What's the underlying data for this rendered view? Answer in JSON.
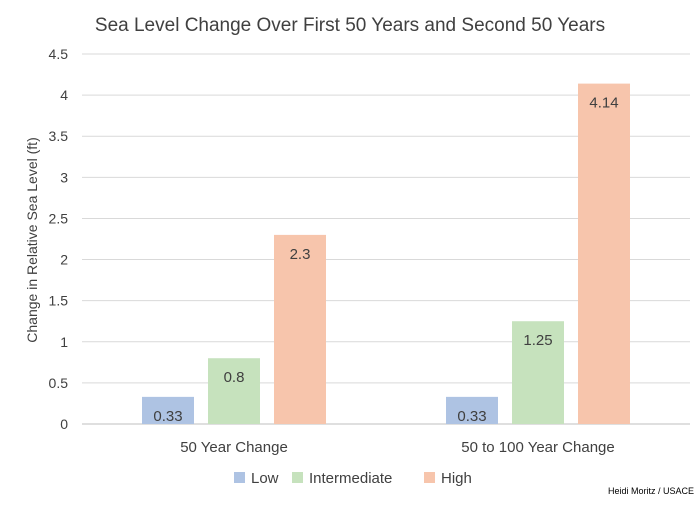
{
  "chart_data": {
    "type": "bar",
    "title": "Sea Level Change Over First 50 Years and Second 50 Years",
    "xlabel": "",
    "ylabel": "Change in Relative Sea Level (ft)",
    "categories": [
      "50 Year Change",
      "50 to 100 Year Change"
    ],
    "series": [
      {
        "name": "Low",
        "values": [
          0.33,
          0.33
        ],
        "labels": [
          "0.33",
          "0.33"
        ],
        "color": "#aec3e3"
      },
      {
        "name": "Intermediate",
        "values": [
          0.8,
          1.25
        ],
        "labels": [
          "0.8",
          "1.25"
        ],
        "color": "#c6e2bd"
      },
      {
        "name": "High",
        "values": [
          2.3,
          4.14
        ],
        "labels": [
          "2.3",
          "4.14"
        ],
        "color": "#f7c5ac"
      }
    ],
    "ylim": [
      0,
      4.5
    ],
    "yticks": [
      "0",
      "0.5",
      "1",
      "1.5",
      "2",
      "2.5",
      "3",
      "3.5",
      "4",
      "4.5"
    ],
    "grid": true,
    "legend_position": "bottom"
  },
  "credit": "Heidi Moritz / USACE",
  "colors": {
    "title": "#404040",
    "text": "#404040",
    "grid": "#d9d9d9",
    "axis": "#bfbfbf"
  }
}
